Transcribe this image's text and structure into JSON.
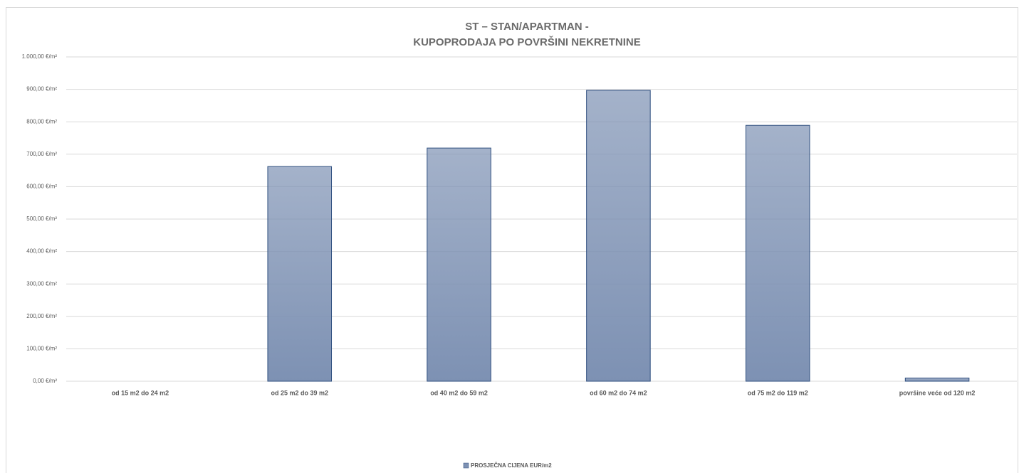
{
  "chart_data": {
    "type": "bar",
    "title": [
      "ST – STAN/APARTMAN -",
      "KUPOPRODAJA PO POVRŠINI NEKRETNINE"
    ],
    "categories": [
      "od 15 m2 do 24 m2",
      "od 25 m2 do 39 m2",
      "od 40 m2 do 59 m2",
      "od 60 m2 do 74 m2",
      "od 75 m2 do 119 m2",
      "površine veće od 120 m2"
    ],
    "series": [
      {
        "name": "PROSJEČNA CIJENA EUR/m2",
        "color": "#7d91b3",
        "values": [
          0,
          662,
          719,
          897,
          789,
          10
        ]
      }
    ],
    "ylim": [
      0,
      1000
    ],
    "yticks": [
      {
        "value": 0,
        "label": "0,00 €/m²"
      },
      {
        "value": 100,
        "label": "100,00 €/m²"
      },
      {
        "value": 200,
        "label": "200,00 €/m²"
      },
      {
        "value": 300,
        "label": "300,00 €/m²"
      },
      {
        "value": 400,
        "label": "400,00 €/m²"
      },
      {
        "value": 500,
        "label": "500,00 €/m²"
      },
      {
        "value": 600,
        "label": "600,00 €/m²"
      },
      {
        "value": 700,
        "label": "700,00 €/m²"
      },
      {
        "value": 800,
        "label": "800,00 €/m²"
      },
      {
        "value": 900,
        "label": "900,00 €/m²"
      },
      {
        "value": 1000,
        "label": "1.000,00 €/m²"
      }
    ],
    "grid": true,
    "legend": "bottom"
  }
}
